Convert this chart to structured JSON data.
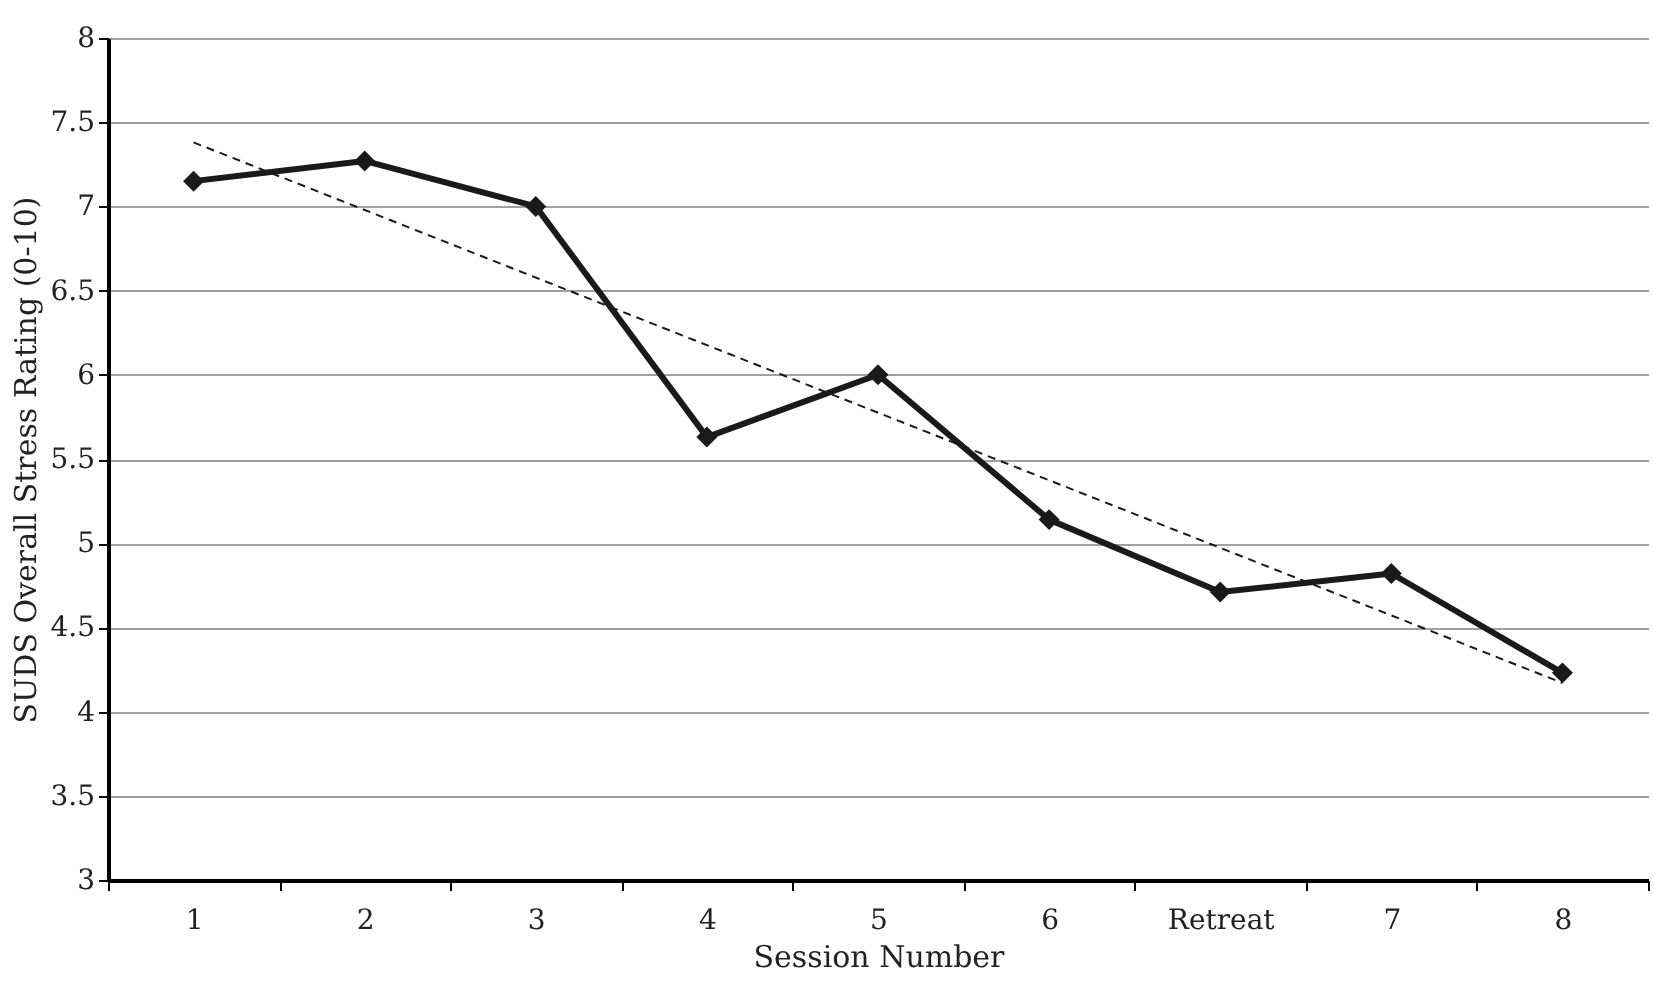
{
  "chart_data": {
    "type": "line",
    "xlabel": "Session Number",
    "ylabel": "SUDS Overall Stress Rating (0-10)",
    "categories": [
      "1",
      "2",
      "3",
      "4",
      "5",
      "6",
      "Retreat",
      "7",
      "8"
    ],
    "series": [
      {
        "color": "#1a1a1a",
        "values": [
          7.15,
          7.27,
          7.0,
          5.63,
          6.0,
          5.14,
          4.71,
          4.82,
          4.23
        ],
        "marker": "diamond",
        "line_style": "solid"
      },
      {
        "type": "line",
        "x": [
          "1",
          "8"
        ],
        "values": [
          7.38,
          4.17
        ],
        "color": "#1a1a1a",
        "marker": "none",
        "line_style": "dashed"
      }
    ],
    "ylim": [
      3,
      8
    ],
    "yticks": [
      3,
      3.5,
      4,
      4.5,
      5,
      5.5,
      6,
      6.5,
      7,
      7.5,
      8
    ],
    "grid": "y"
  }
}
